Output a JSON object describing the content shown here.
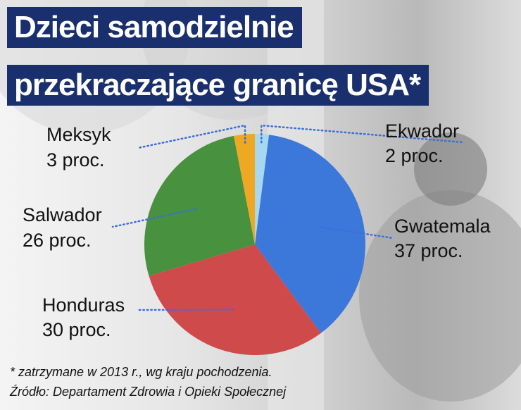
{
  "title": {
    "line1": "Dzieci samodzielnie",
    "line2": "przekraczające granicę USA*"
  },
  "chart_data": {
    "type": "pie",
    "title": "Dzieci samodzielnie przekraczające granicę USA*",
    "slices": [
      {
        "label": "Ekwador",
        "value": 2,
        "value_text": "2 proc.",
        "color": "#a6d8f2"
      },
      {
        "label": "Gwatemala",
        "value": 37,
        "value_text": "37 proc.",
        "color": "#3b78d9"
      },
      {
        "label": "Honduras",
        "value": 30,
        "value_text": "30 proc.",
        "color": "#cf4a4a"
      },
      {
        "label": "Salwador",
        "value": 26,
        "value_text": "26 proc.",
        "color": "#48913e"
      },
      {
        "label": "Meksyk",
        "value": 3,
        "value_text": "3 proc.",
        "color": "#eea823"
      }
    ],
    "start": "top, clockwise"
  },
  "footnote": {
    "note": "* zatrzymane w 2013 r., wg kraju pochodzenia.",
    "source": "Źródło: Departament Zdrowia i Opieki Społecznej"
  },
  "colors": {
    "title_bg": "#1a2f6e",
    "title_text": "#ffffff",
    "leader_line": "#3b6fd6"
  }
}
